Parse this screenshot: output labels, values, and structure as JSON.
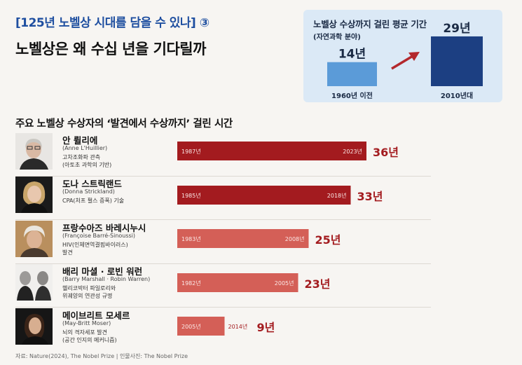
{
  "header": {
    "series_tag": "[125년 노벨상 시대를 담을 수 있나] ③",
    "headline": "노벨상은 왜 수십 년을 기다릴까"
  },
  "infobox": {
    "title": "노벨상 수상까지 걸린 평균 기간",
    "subtitle": "(자연과학 분야)",
    "chart_data": {
      "type": "bar",
      "categories": [
        "1960년 이전",
        "2010년대"
      ],
      "values": [
        14,
        29
      ],
      "value_labels": [
        "14년",
        "29년"
      ],
      "colors": [
        "#5b9bd8",
        "#1c3f82"
      ],
      "arrow_color": "#b3282d"
    }
  },
  "section_title": "주요 노벨상 수상자의 ‘발견에서 수상까지’ 걸린 시간",
  "laureates": [
    {
      "name": "안 륄리에",
      "latin": "(Anne L'Huillier)",
      "desc1": "고차조화파 관측",
      "desc2": "(아토초 과학의 기반)"
    },
    {
      "name": "도나 스트릭랜드",
      "latin": "(Donna Strickland)",
      "desc1": "CPA(처프 펄스 증폭) 기술",
      "desc2": ""
    },
    {
      "name": "프랑수아즈 바레시누시",
      "latin": "(Françoise Barré-Sinoussi)",
      "desc1": "HIV(인체면역결핍바이러스)",
      "desc2": "발견"
    },
    {
      "name": "배리 마셜 · 로빈 워런",
      "latin": "(Barry Marshall · Robin Warren)",
      "desc1": "헬리코박터 파일로리와",
      "desc2": "위궤양의 연관성 규명"
    },
    {
      "name": "메이브리트 모세르",
      "latin": "(May-Britt Moser)",
      "desc1": "뇌의 격자세포 발견",
      "desc2": "(공간 인지의 메커니즘)"
    }
  ],
  "chart_data": {
    "type": "bar",
    "orientation": "horizontal",
    "categories": [
      "안 륄리에",
      "도나 스트릭랜드",
      "프랑수아즈 바레시누시",
      "배리 마셜 · 로빈 워런",
      "메이브리트 모세르"
    ],
    "start": [
      1987,
      1985,
      1983,
      1982,
      2005
    ],
    "end": [
      2023,
      2018,
      2008,
      2005,
      2014
    ],
    "start_labels": [
      "1987년",
      "1985년",
      "1983년",
      "1982년",
      "2005년"
    ],
    "end_labels": [
      "2023년",
      "2018년",
      "2008년",
      "2005년",
      "2014년"
    ],
    "values": [
      36,
      33,
      25,
      23,
      9
    ],
    "value_labels": [
      "36년",
      "33년",
      "25년",
      "23년",
      "9년"
    ],
    "colors": [
      "#a31b1f",
      "#a31b1f",
      "#d45f57",
      "#d45f57",
      "#d45f57"
    ],
    "label_color": "#a31b1f"
  },
  "source": "자료: Nature(2024), The Nobel Prize | 인물사진: The Nobel Prize"
}
